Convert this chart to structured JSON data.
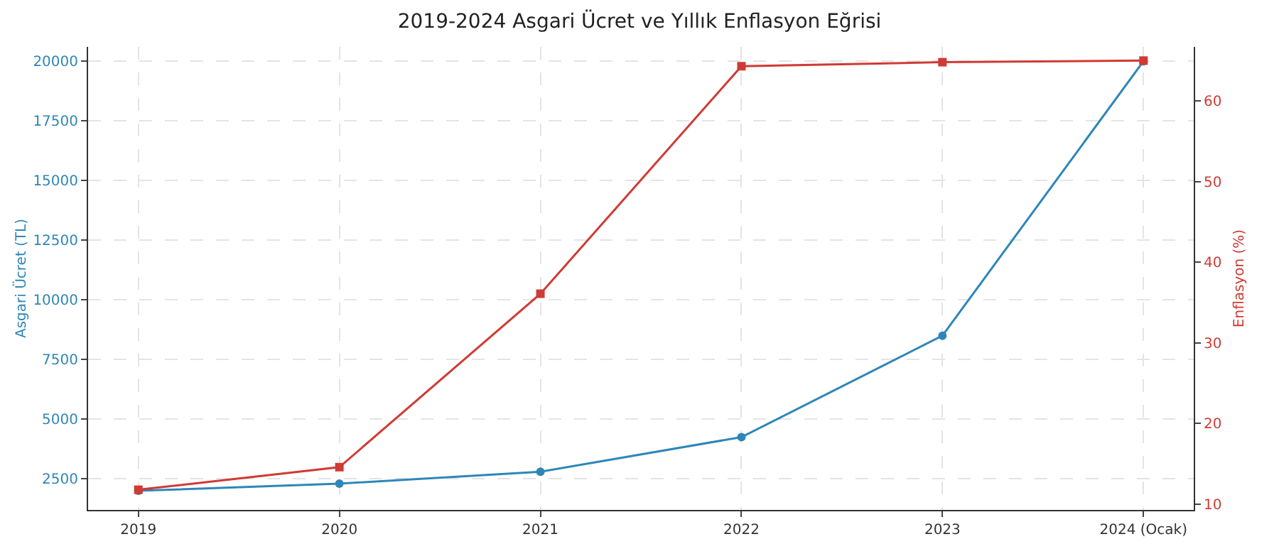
{
  "chart_data": {
    "type": "line",
    "title": "2019-2024 Asgari Ücret ve Yıllık Enflasyon Eğrisi",
    "ylabel": "Asgari Ücret (TL)",
    "y2label": "Enflasyon (%)",
    "categories": [
      "2019",
      "2020",
      "2021",
      "2022",
      "2023",
      "2024 (Ocak)"
    ],
    "series": [
      {
        "color": "#2e86b8",
        "marker": "circle",
        "values": [
          2000,
          2300,
          2800,
          4250,
          8500,
          20000
        ]
      },
      {
        "color": "#d03a35",
        "marker": "square",
        "axis": "y2",
        "values": [
          11.8,
          14.6,
          36.1,
          64.3,
          64.8,
          65.0
        ]
      }
    ],
    "ylim": [
      1200,
      20600
    ],
    "yticks": [
      2500,
      5000,
      7500,
      10000,
      12500,
      15000,
      17500,
      20000
    ],
    "y2lim": [
      9.3,
      66.7
    ],
    "y2ticks": [
      10,
      20,
      30,
      40,
      50,
      60
    ],
    "grid": true
  }
}
